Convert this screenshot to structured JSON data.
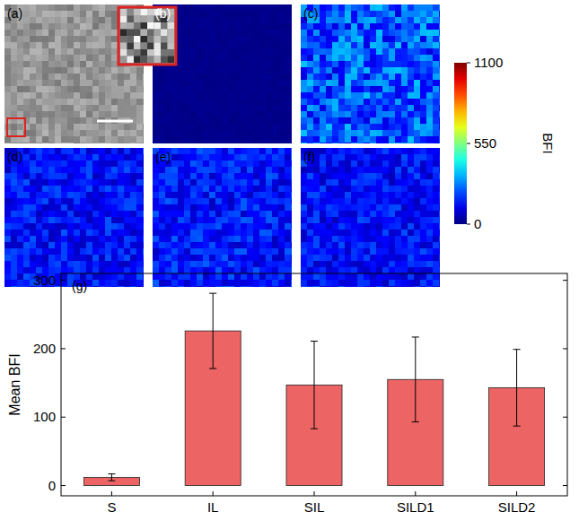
{
  "panel_labels": [
    "(a)",
    "(b)",
    "(c)",
    "(d)",
    "(e)",
    "(f)",
    "(g)"
  ],
  "image_panels": [
    {
      "category": null
    },
    {
      "category": "S"
    },
    {
      "category": "IL"
    },
    {
      "category": "SIL"
    },
    {
      "category": "SILD1"
    },
    {
      "category": "SILD2"
    }
  ],
  "colorbar": {
    "label": "BFI",
    "range": [
      0,
      1100
    ],
    "ticks": [
      0,
      550,
      1100
    ]
  },
  "chart_data": {
    "type": "bar",
    "y_label": "Mean BFI",
    "categories": [
      "S",
      "IL",
      "SIL",
      "SILD1",
      "SILD2"
    ],
    "values": [
      12,
      226,
      147,
      155,
      143
    ],
    "errors": [
      5,
      55,
      64,
      62,
      56
    ],
    "color": "#ec6464",
    "ylim": [
      -15,
      310
    ],
    "yticks": [
      0,
      100,
      200,
      300
    ],
    "grid": false
  }
}
